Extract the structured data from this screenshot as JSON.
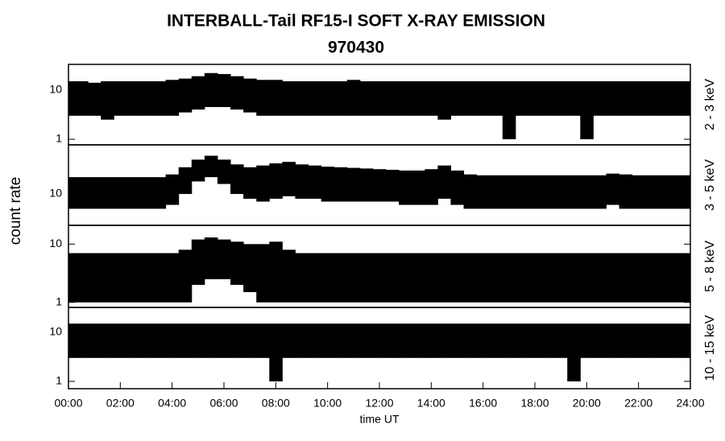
{
  "title": "INTERBALL-Tail RF15-I SOFT X-RAY EMISSION",
  "subtitle": "970430",
  "y_label": "count rate",
  "x_label": "time UT",
  "chart_data": [
    {
      "type": "range",
      "label": "2 - 3 keV",
      "color": "#000000",
      "log": true,
      "ylim": [
        0.77,
        33
      ],
      "yticks": [
        1,
        10
      ],
      "xlim": [
        0,
        24
      ],
      "x": [
        0,
        0.5,
        1,
        1.5,
        2,
        2.5,
        3,
        3.5,
        4,
        4.5,
        5,
        5.5,
        6,
        6.5,
        7,
        7.5,
        8,
        8.5,
        9,
        9.5,
        10,
        10.5,
        11,
        11.5,
        12,
        12.5,
        13,
        13.5,
        14,
        14.5,
        15,
        15.5,
        16,
        16.5,
        17,
        17.5,
        18,
        18.5,
        19,
        19.5,
        20,
        20.5,
        21,
        21.5,
        22,
        22.5,
        23,
        23.5,
        24
      ],
      "high": [
        15,
        15,
        14,
        15,
        15,
        15,
        15,
        15,
        16,
        17,
        19,
        22,
        21,
        19,
        17,
        16,
        16,
        15,
        15,
        15,
        15,
        15,
        16,
        15,
        15,
        15,
        15,
        15,
        15,
        15,
        15,
        15,
        15,
        15,
        15,
        15,
        15,
        15,
        15,
        15,
        15,
        15,
        15,
        15,
        15,
        15,
        15,
        15,
        15
      ],
      "low": [
        3,
        3,
        3,
        2.5,
        3,
        3,
        3,
        3,
        3,
        3.5,
        4,
        4.5,
        4.5,
        4,
        3.5,
        3,
        3,
        3,
        3,
        3,
        3,
        3,
        3,
        3,
        3,
        3,
        3,
        3,
        3,
        2.5,
        3,
        3,
        3,
        3,
        1,
        3,
        3,
        3,
        3,
        3,
        1,
        3,
        3,
        3,
        3,
        3,
        3,
        3,
        3
      ]
    },
    {
      "type": "range",
      "label": "3 - 5 keV",
      "color": "#000000",
      "log": true,
      "ylim": [
        2.3,
        100
      ],
      "yticks": [
        10
      ],
      "xlim": [
        0,
        24
      ],
      "x": [
        0,
        0.5,
        1,
        1.5,
        2,
        2.5,
        3,
        3.5,
        4,
        4.5,
        5,
        5.5,
        6,
        6.5,
        7,
        7.5,
        8,
        8.5,
        9,
        9.5,
        10,
        10.5,
        11,
        11.5,
        12,
        12.5,
        13,
        13.5,
        14,
        14.5,
        15,
        15.5,
        16,
        16.5,
        17,
        17.5,
        18,
        18.5,
        19,
        19.5,
        20,
        20.5,
        21,
        21.5,
        22,
        22.5,
        23,
        23.5,
        24
      ],
      "high": [
        22,
        22,
        22,
        22,
        22,
        22,
        22,
        22,
        25,
        35,
        50,
        60,
        50,
        40,
        35,
        38,
        42,
        45,
        40,
        38,
        36,
        35,
        34,
        33,
        32,
        31,
        30,
        30,
        32,
        38,
        30,
        25,
        24,
        24,
        24,
        24,
        24,
        24,
        24,
        24,
        24,
        24,
        26,
        25,
        24,
        24,
        24,
        24,
        24
      ],
      "low": [
        5,
        5,
        5,
        5,
        5,
        5,
        5,
        5,
        6,
        10,
        18,
        22,
        16,
        10,
        8,
        7,
        8,
        9,
        8,
        8,
        7,
        7,
        7,
        7,
        7,
        7,
        6,
        6,
        6,
        8,
        6,
        5,
        5,
        5,
        5,
        5,
        5,
        5,
        5,
        5,
        5,
        5,
        6,
        5,
        5,
        5,
        5,
        5,
        5
      ]
    },
    {
      "type": "range",
      "label": "5 - 8 keV",
      "color": "#000000",
      "log": true,
      "ylim": [
        0.82,
        21
      ],
      "yticks": [
        1,
        10
      ],
      "xlim": [
        0,
        24
      ],
      "x": [
        0,
        0.5,
        1,
        1.5,
        2,
        2.5,
        3,
        3.5,
        4,
        4.5,
        5,
        5.5,
        6,
        6.5,
        7,
        7.5,
        8,
        8.5,
        9,
        9.5,
        10,
        10.5,
        11,
        11.5,
        12,
        12.5,
        13,
        13.5,
        14,
        14.5,
        15,
        15.5,
        16,
        16.5,
        17,
        17.5,
        18,
        18.5,
        19,
        19.5,
        20,
        20.5,
        21,
        21.5,
        22,
        22.5,
        23,
        23.5,
        24
      ],
      "high": [
        7,
        7,
        7,
        7,
        7,
        7,
        7,
        7,
        7,
        8,
        12,
        13,
        12,
        11,
        10,
        10,
        11,
        8,
        7,
        7,
        7,
        7,
        7,
        7,
        7,
        7,
        7,
        7,
        7,
        7,
        7,
        7,
        7,
        7,
        7,
        7,
        7,
        7,
        7,
        7,
        7,
        7,
        7,
        7,
        7,
        7,
        7,
        7,
        7
      ],
      "low": [
        1,
        1,
        1,
        1,
        1,
        1,
        1,
        1,
        1,
        1,
        2,
        2.5,
        2.5,
        2,
        1.5,
        1,
        1,
        1,
        1,
        1,
        1,
        1,
        1,
        1,
        1,
        1,
        1,
        1,
        1,
        1,
        1,
        1,
        1,
        1,
        1,
        1,
        1,
        1,
        1,
        1,
        1,
        1,
        1,
        1,
        1,
        1,
        1,
        1,
        1
      ]
    },
    {
      "type": "range",
      "label": "10 - 15 keV",
      "color": "#000000",
      "log": true,
      "ylim": [
        0.71,
        32
      ],
      "yticks": [
        1,
        10
      ],
      "xlim": [
        0,
        24
      ],
      "xticks": [
        {
          "value": 0,
          "label": "00:00"
        },
        {
          "value": 2,
          "label": "02:00"
        },
        {
          "value": 4,
          "label": "04:00"
        },
        {
          "value": 6,
          "label": "06:00"
        },
        {
          "value": 8,
          "label": "08:00"
        },
        {
          "value": 10,
          "label": "10:00"
        },
        {
          "value": 12,
          "label": "12:00"
        },
        {
          "value": 14,
          "label": "14:00"
        },
        {
          "value": 16,
          "label": "16:00"
        },
        {
          "value": 18,
          "label": "18:00"
        },
        {
          "value": 20,
          "label": "20:00"
        },
        {
          "value": 22,
          "label": "22:00"
        },
        {
          "value": 24,
          "label": "24:00"
        }
      ],
      "x": [
        0,
        0.5,
        1,
        1.5,
        2,
        2.5,
        3,
        3.5,
        4,
        4.5,
        5,
        5.5,
        6,
        6.5,
        7,
        7.5,
        8,
        8.5,
        9,
        9.5,
        10,
        10.5,
        11,
        11.5,
        12,
        12.5,
        13,
        13.5,
        14,
        14.5,
        15,
        15.5,
        16,
        16.5,
        17,
        17.5,
        18,
        18.5,
        19,
        19.5,
        20,
        20.5,
        21,
        21.5,
        22,
        22.5,
        23,
        23.5,
        24
      ],
      "high": [
        15,
        15,
        15,
        15,
        15,
        15,
        15,
        15,
        15,
        15,
        15,
        15,
        15,
        15,
        15,
        15,
        15,
        15,
        15,
        15,
        15,
        15,
        15,
        15,
        15,
        15,
        15,
        15,
        15,
        15,
        15,
        15,
        15,
        15,
        15,
        15,
        15,
        15,
        15,
        15,
        15,
        15,
        15,
        15,
        15,
        15,
        15,
        15,
        15
      ],
      "low": [
        3,
        3,
        3,
        3,
        3,
        3,
        3,
        3,
        3,
        3,
        3,
        3,
        3,
        3,
        3,
        3,
        1,
        3,
        3,
        3,
        3,
        3,
        3,
        3,
        3,
        3,
        3,
        3,
        3,
        3,
        3,
        3,
        3,
        3,
        3,
        3,
        3,
        3,
        3,
        1,
        3,
        3,
        3,
        3,
        3,
        3,
        3,
        3,
        3
      ]
    }
  ]
}
